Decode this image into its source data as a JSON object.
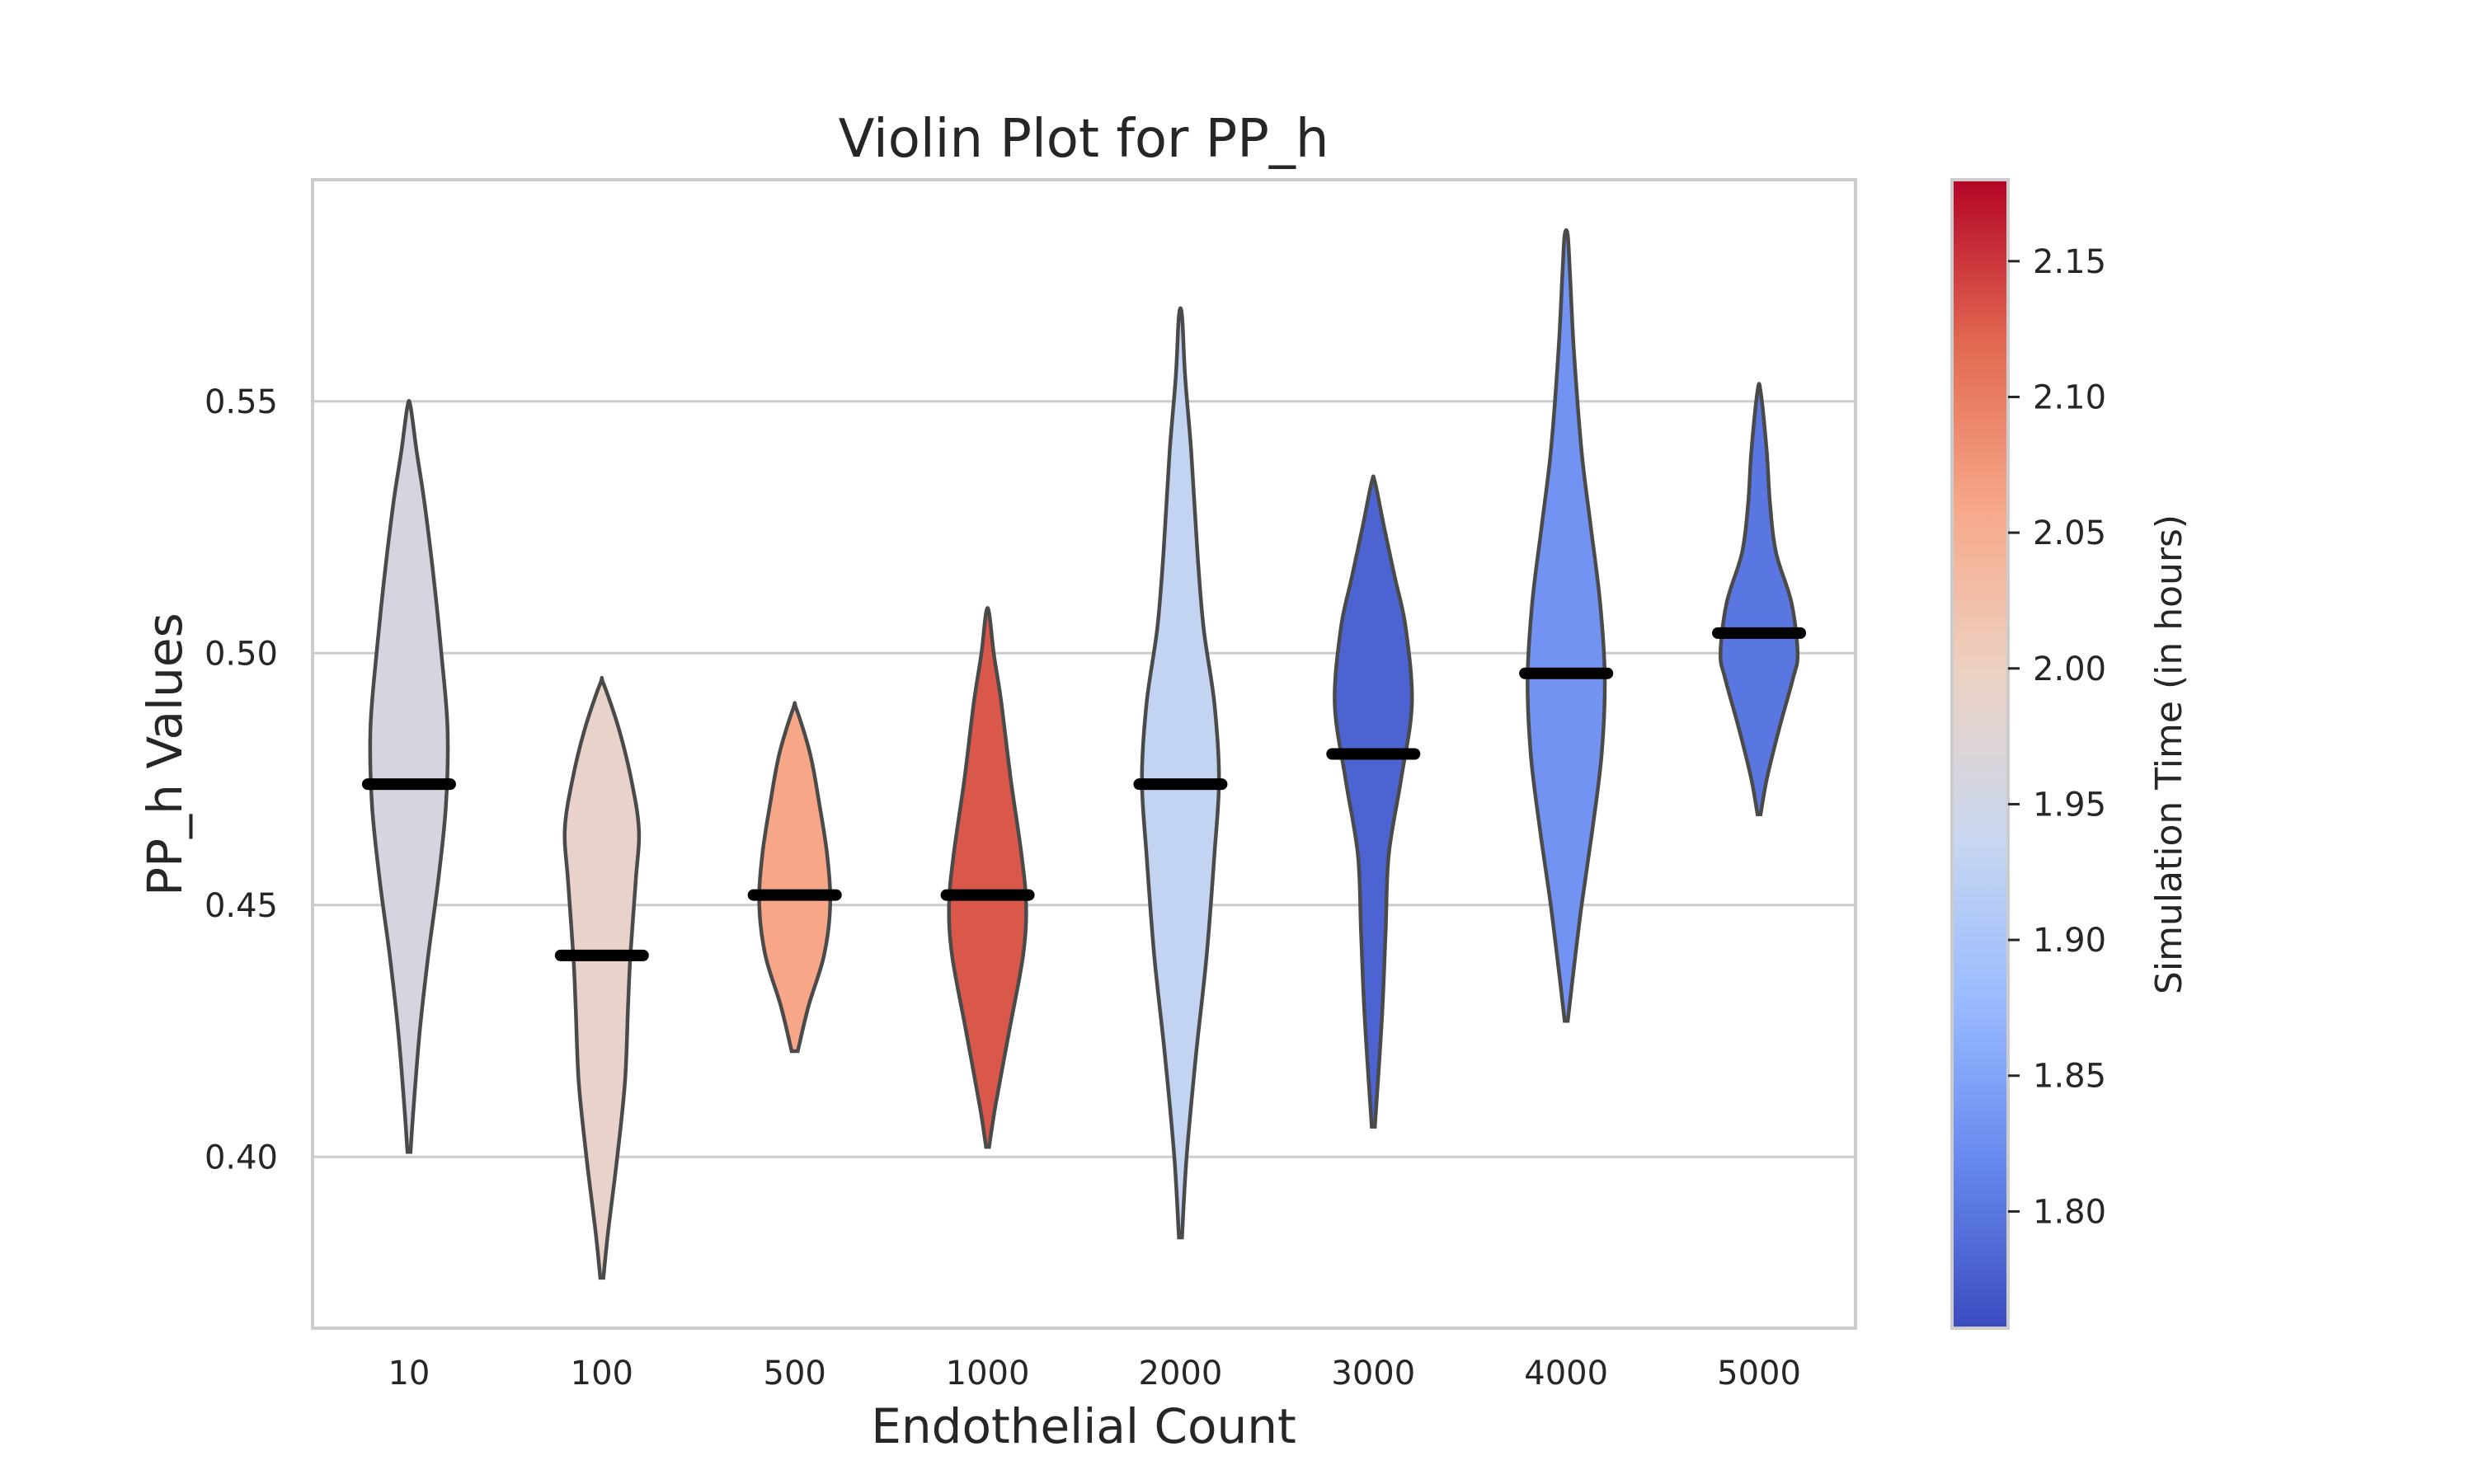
{
  "chart_data": {
    "type": "violin",
    "title": "Violin Plot for PP_h",
    "xlabel": "Endothelial Count",
    "ylabel": "PP_h Values",
    "categories": [
      "10",
      "100",
      "500",
      "1000",
      "2000",
      "3000",
      "4000",
      "5000"
    ],
    "ylim": [
      0.366,
      0.594
    ],
    "yticks": [
      0.4,
      0.45,
      0.5,
      0.55
    ],
    "ytick_labels": [
      "0.40",
      "0.45",
      "0.50",
      "0.55"
    ],
    "grid": "horizontal",
    "violins": [
      {
        "category": "10",
        "median": 0.474,
        "min": 0.401,
        "max": 0.549,
        "sim_time": 1.96,
        "shape": [
          [
            0.401,
            0.02
          ],
          [
            0.41,
            0.06
          ],
          [
            0.425,
            0.14
          ],
          [
            0.44,
            0.25
          ],
          [
            0.455,
            0.38
          ],
          [
            0.47,
            0.48
          ],
          [
            0.485,
            0.5
          ],
          [
            0.5,
            0.42
          ],
          [
            0.515,
            0.32
          ],
          [
            0.53,
            0.2
          ],
          [
            0.54,
            0.1
          ],
          [
            0.549,
            0.02
          ]
        ]
      },
      {
        "category": "100",
        "median": 0.44,
        "min": 0.376,
        "max": 0.494,
        "sim_time": 1.99,
        "shape": [
          [
            0.376,
            0.02
          ],
          [
            0.385,
            0.08
          ],
          [
            0.4,
            0.2
          ],
          [
            0.415,
            0.3
          ],
          [
            0.43,
            0.34
          ],
          [
            0.44,
            0.37
          ],
          [
            0.455,
            0.44
          ],
          [
            0.465,
            0.48
          ],
          [
            0.475,
            0.38
          ],
          [
            0.485,
            0.22
          ],
          [
            0.494,
            0.02
          ]
        ]
      },
      {
        "category": "500",
        "median": 0.452,
        "min": 0.421,
        "max": 0.489,
        "sim_time": 2.06,
        "shape": [
          [
            0.421,
            0.04
          ],
          [
            0.43,
            0.18
          ],
          [
            0.44,
            0.38
          ],
          [
            0.45,
            0.46
          ],
          [
            0.46,
            0.42
          ],
          [
            0.47,
            0.32
          ],
          [
            0.48,
            0.2
          ],
          [
            0.489,
            0.02
          ]
        ]
      },
      {
        "category": "1000",
        "median": 0.452,
        "min": 0.402,
        "max": 0.508,
        "sim_time": 2.13,
        "shape": [
          [
            0.402,
            0.02
          ],
          [
            0.41,
            0.1
          ],
          [
            0.425,
            0.28
          ],
          [
            0.44,
            0.46
          ],
          [
            0.45,
            0.5
          ],
          [
            0.46,
            0.44
          ],
          [
            0.475,
            0.3
          ],
          [
            0.49,
            0.18
          ],
          [
            0.5,
            0.08
          ],
          [
            0.508,
            0.02
          ]
        ]
      },
      {
        "category": "2000",
        "median": 0.474,
        "min": 0.384,
        "max": 0.567,
        "sim_time": 1.93,
        "shape": [
          [
            0.384,
            0.02
          ],
          [
            0.4,
            0.08
          ],
          [
            0.42,
            0.2
          ],
          [
            0.44,
            0.34
          ],
          [
            0.46,
            0.44
          ],
          [
            0.475,
            0.5
          ],
          [
            0.49,
            0.44
          ],
          [
            0.505,
            0.3
          ],
          [
            0.52,
            0.22
          ],
          [
            0.54,
            0.14
          ],
          [
            0.555,
            0.06
          ],
          [
            0.567,
            0.02
          ]
        ]
      },
      {
        "category": "3000",
        "median": 0.48,
        "min": 0.406,
        "max": 0.534,
        "sim_time": 1.78,
        "shape": [
          [
            0.406,
            0.02
          ],
          [
            0.415,
            0.06
          ],
          [
            0.43,
            0.12
          ],
          [
            0.445,
            0.16
          ],
          [
            0.46,
            0.2
          ],
          [
            0.475,
            0.36
          ],
          [
            0.49,
            0.5
          ],
          [
            0.505,
            0.42
          ],
          [
            0.515,
            0.28
          ],
          [
            0.525,
            0.14
          ],
          [
            0.534,
            0.02
          ]
        ]
      },
      {
        "category": "4000",
        "median": 0.496,
        "min": 0.427,
        "max": 0.583,
        "sim_time": 1.83,
        "shape": [
          [
            0.427,
            0.02
          ],
          [
            0.435,
            0.08
          ],
          [
            0.45,
            0.2
          ],
          [
            0.465,
            0.34
          ],
          [
            0.48,
            0.46
          ],
          [
            0.495,
            0.5
          ],
          [
            0.51,
            0.44
          ],
          [
            0.525,
            0.32
          ],
          [
            0.54,
            0.2
          ],
          [
            0.56,
            0.1
          ],
          [
            0.575,
            0.05
          ],
          [
            0.583,
            0.02
          ]
        ]
      },
      {
        "category": "5000",
        "median": 0.504,
        "min": 0.468,
        "max": 0.552,
        "sim_time": 1.8,
        "shape": [
          [
            0.468,
            0.02
          ],
          [
            0.475,
            0.1
          ],
          [
            0.485,
            0.26
          ],
          [
            0.495,
            0.44
          ],
          [
            0.5,
            0.5
          ],
          [
            0.51,
            0.42
          ],
          [
            0.52,
            0.22
          ],
          [
            0.53,
            0.14
          ],
          [
            0.54,
            0.1
          ],
          [
            0.552,
            0.02
          ]
        ]
      }
    ],
    "colorbar": {
      "label": "Simulation Time (in hours)",
      "range": [
        1.757,
        2.18
      ],
      "ticks": [
        1.8,
        1.85,
        1.9,
        1.95,
        2.0,
        2.05,
        2.1,
        2.15
      ],
      "tick_labels": [
        "1.80",
        "1.85",
        "1.90",
        "1.95",
        "2.00",
        "2.05",
        "2.10",
        "2.15"
      ],
      "colormap": "coolwarm",
      "colors": [
        "#3b4cc0",
        "#6788ee",
        "#9abbff",
        "#c9d7f0",
        "#edd1c2",
        "#f7a889",
        "#e26952",
        "#b40426"
      ]
    },
    "median_color": "#000000",
    "violin_edge_color": "#4a4a4a",
    "grid_color": "#cccccc"
  }
}
